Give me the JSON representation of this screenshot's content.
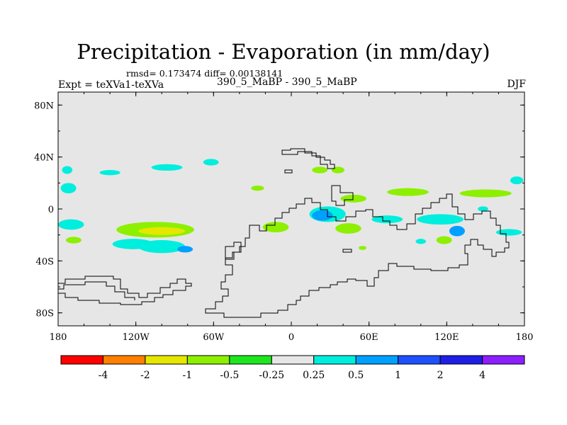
{
  "chart_data": {
    "type": "heatmap",
    "title": "Precipitation - Evaporation (in mm/day)",
    "stats": "rmsd= 0.173474 diff= 0.00138141",
    "experiment": "Expt = teXVa1-teXVa",
    "period": "390_5_MaBP - 390_5_MaBP",
    "season": "DJF",
    "x_range": [
      -180,
      180
    ],
    "y_range": [
      -90,
      90
    ],
    "x_ticks": [
      {
        "value": -180,
        "label": "180"
      },
      {
        "value": -120,
        "label": "120W"
      },
      {
        "value": -60,
        "label": "60W"
      },
      {
        "value": 0,
        "label": "0"
      },
      {
        "value": 60,
        "label": "60E"
      },
      {
        "value": 120,
        "label": "120E"
      },
      {
        "value": 180,
        "label": "180"
      }
    ],
    "y_ticks": [
      {
        "value": 80,
        "label": "80N"
      },
      {
        "value": 40,
        "label": "40N"
      },
      {
        "value": 0,
        "label": "0"
      },
      {
        "value": -40,
        "label": "40S"
      },
      {
        "value": -80,
        "label": "80S"
      }
    ],
    "colorbar": {
      "colors": [
        "#ff0000",
        "#ff7f00",
        "#e6e600",
        "#8cf000",
        "#1ee61e",
        "#e6e6e6",
        "#00eedd",
        "#00a0ff",
        "#1e50ff",
        "#1e1ee6",
        "#8c1eff"
      ],
      "labels": [
        "-4",
        "-2",
        "-1",
        "-0.5",
        "-0.25",
        "0.25",
        "0.5",
        "1",
        "2",
        "4"
      ]
    },
    "background_color": "#e6e6e6",
    "anomaly_patches": [
      {
        "lon": -105,
        "lat": -16,
        "rlon": 30,
        "rlat": 6,
        "level": -0.5
      },
      {
        "lon": -100,
        "lat": -17,
        "rlon": 18,
        "rlat": 3,
        "level": -1
      },
      {
        "lon": -170,
        "lat": -12,
        "rlon": 10,
        "rlat": 4,
        "level": 0.5
      },
      {
        "lon": -168,
        "lat": -24,
        "rlon": 6,
        "rlat": 2.5,
        "level": -0.5
      },
      {
        "lon": -122,
        "lat": -27,
        "rlon": 16,
        "rlat": 4,
        "level": 0.5
      },
      {
        "lon": -100,
        "lat": -29,
        "rlon": 18,
        "rlat": 5,
        "level": 0.5
      },
      {
        "lon": -82,
        "lat": -31,
        "rlon": 6,
        "rlat": 2.5,
        "level": 1
      },
      {
        "lon": -173,
        "lat": 30,
        "rlon": 4,
        "rlat": 3,
        "level": 0.5
      },
      {
        "lon": -140,
        "lat": 28,
        "rlon": 8,
        "rlat": 2,
        "level": 0.5
      },
      {
        "lon": -96,
        "lat": 32,
        "rlon": 12,
        "rlat": 2.5,
        "level": 0.5
      },
      {
        "lon": -62,
        "lat": 36,
        "rlon": 6,
        "rlat": 2.5,
        "level": 0.5
      },
      {
        "lon": -172,
        "lat": 16,
        "rlon": 6,
        "rlat": 4,
        "level": 0.5
      },
      {
        "lon": -26,
        "lat": 16,
        "rlon": 5,
        "rlat": 2,
        "level": -0.5
      },
      {
        "lon": 22,
        "lat": 30,
        "rlon": 6,
        "rlat": 2.5,
        "level": -0.5
      },
      {
        "lon": 36,
        "lat": 30,
        "rlon": 5,
        "rlat": 2.5,
        "level": -0.5
      },
      {
        "lon": 28,
        "lat": -4,
        "rlon": 14,
        "rlat": 6,
        "level": 0.5
      },
      {
        "lon": 24,
        "lat": -5,
        "rlon": 8,
        "rlat": 4,
        "level": 1
      },
      {
        "lon": 48,
        "lat": 8,
        "rlon": 10,
        "rlat": 3,
        "level": -0.5
      },
      {
        "lon": -12,
        "lat": -14,
        "rlon": 10,
        "rlat": 4,
        "level": -0.5
      },
      {
        "lon": 44,
        "lat": -15,
        "rlon": 10,
        "rlat": 4,
        "level": -0.5
      },
      {
        "lon": 74,
        "lat": -8,
        "rlon": 12,
        "rlat": 3,
        "level": 0.5
      },
      {
        "lon": 90,
        "lat": 13,
        "rlon": 16,
        "rlat": 3,
        "level": -0.5
      },
      {
        "lon": 150,
        "lat": 12,
        "rlon": 20,
        "rlat": 3,
        "level": -0.5
      },
      {
        "lon": 115,
        "lat": -8,
        "rlon": 18,
        "rlat": 4,
        "level": 0.5
      },
      {
        "lon": 128,
        "lat": -17,
        "rlon": 6,
        "rlat": 4,
        "level": 1
      },
      {
        "lon": 118,
        "lat": -24,
        "rlon": 6,
        "rlat": 3,
        "level": -0.5
      },
      {
        "lon": 168,
        "lat": -18,
        "rlon": 10,
        "rlat": 2.5,
        "level": 0.5
      },
      {
        "lon": 174,
        "lat": 22,
        "rlon": 5,
        "rlat": 3,
        "level": 0.5
      },
      {
        "lon": 100,
        "lat": -25,
        "rlon": 4,
        "rlat": 2,
        "level": 0.5
      },
      {
        "lon": 55,
        "lat": -30,
        "rlon": 3,
        "rlat": 1.5,
        "level": -0.5
      },
      {
        "lon": 148,
        "lat": 0,
        "rlon": 4,
        "rlat": 2,
        "level": 0.5
      }
    ]
  }
}
